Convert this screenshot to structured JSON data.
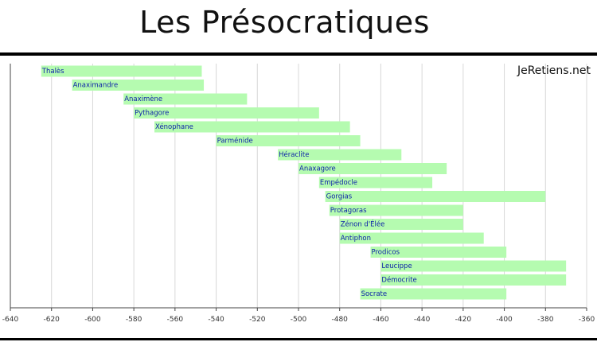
{
  "header": {
    "title": "Les Présocratiques"
  },
  "watermark": "JeRetiens.net",
  "colors": {
    "bar": "#b5fbb0",
    "label": "#0a1fa8",
    "grid": "#d8d8d8",
    "axis": "#444444"
  },
  "chart_data": {
    "type": "bar",
    "orientation": "horizontal",
    "title": "",
    "xlabel": "",
    "ylabel": "",
    "xlim": [
      -640,
      -360
    ],
    "xticks": [
      -640,
      -620,
      -600,
      -580,
      -560,
      -540,
      -520,
      -500,
      -480,
      -460,
      -440,
      -420,
      -400,
      -380,
      -360
    ],
    "grid": true,
    "series": [
      {
        "items": [
          {
            "label": "Thalès",
            "start": -625,
            "end": -547
          },
          {
            "label": "Anaximandre",
            "start": -610,
            "end": -546
          },
          {
            "label": "Anaximène",
            "start": -585,
            "end": -525
          },
          {
            "label": "Pythagore",
            "start": -580,
            "end": -490
          },
          {
            "label": "Xénophane",
            "start": -570,
            "end": -475
          },
          {
            "label": "Parménide",
            "start": -540,
            "end": -470
          },
          {
            "label": "Héraclite",
            "start": -510,
            "end": -450
          },
          {
            "label": "Anaxagore",
            "start": -500,
            "end": -428
          },
          {
            "label": "Empédocle",
            "start": -490,
            "end": -435
          },
          {
            "label": "Gorgias",
            "start": -487,
            "end": -380
          },
          {
            "label": "Protagoras",
            "start": -485,
            "end": -420
          },
          {
            "label": "Zénon d'Élée",
            "start": -480,
            "end": -420
          },
          {
            "label": "Antiphon",
            "start": -480,
            "end": -410
          },
          {
            "label": "Prodicos",
            "start": -465,
            "end": -399
          },
          {
            "label": "Leucippe",
            "start": -460,
            "end": -370
          },
          {
            "label": "Démocrite",
            "start": -460,
            "end": -370
          },
          {
            "label": "Socrate",
            "start": -470,
            "end": -399
          }
        ]
      }
    ]
  }
}
